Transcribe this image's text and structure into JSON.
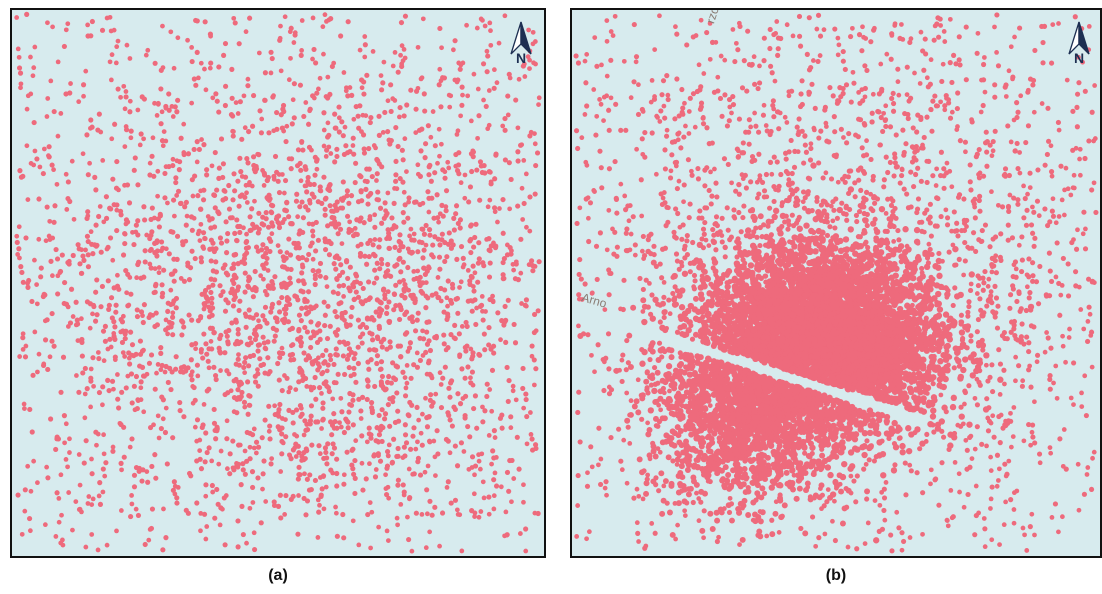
{
  "panels": [
    {
      "caption": "(a)",
      "north_label": "N",
      "background": "#d7ebee",
      "point_color": "#ee6a7c",
      "map_labels": []
    },
    {
      "caption": "(b)",
      "north_label": "N",
      "background": "#d7ebee",
      "point_color": "#ee6a7c",
      "map_labels": [
        "Arno",
        "rzolle"
      ]
    }
  ],
  "icons": {
    "north_arrow": "north-arrow-icon"
  }
}
